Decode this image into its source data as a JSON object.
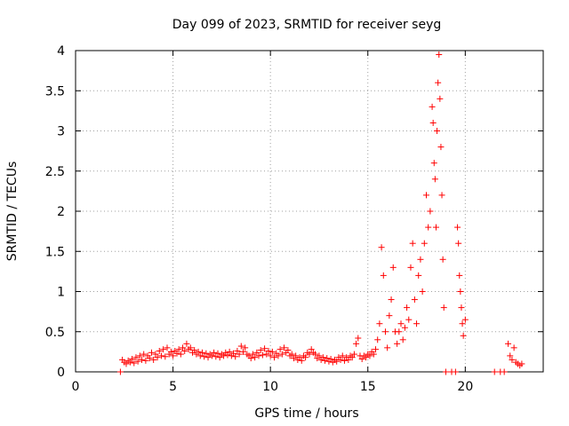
{
  "chart_data": {
    "type": "scatter",
    "title": "Day 099 of 2023, SRMTID for receiver seyg",
    "xlabel": "GPS time / hours",
    "ylabel": "SRMTID / TECUs",
    "xlim": [
      0,
      24
    ],
    "ylim": [
      0,
      4
    ],
    "xticks": [
      0,
      5,
      10,
      15,
      20
    ],
    "yticks": [
      0,
      0.5,
      1,
      1.5,
      2,
      2.5,
      3,
      3.5,
      4
    ],
    "grid": true,
    "marker": "+",
    "color": "#ff0000",
    "series": [
      {
        "name": "SRMTID",
        "points": [
          [
            2.3,
            0.0
          ],
          [
            2.4,
            0.15
          ],
          [
            2.5,
            0.12
          ],
          [
            2.6,
            0.1
          ],
          [
            2.7,
            0.14
          ],
          [
            2.8,
            0.12
          ],
          [
            2.9,
            0.16
          ],
          [
            3.0,
            0.11
          ],
          [
            3.1,
            0.18
          ],
          [
            3.2,
            0.13
          ],
          [
            3.3,
            0.2
          ],
          [
            3.4,
            0.15
          ],
          [
            3.5,
            0.22
          ],
          [
            3.6,
            0.14
          ],
          [
            3.7,
            0.2
          ],
          [
            3.8,
            0.17
          ],
          [
            3.9,
            0.24
          ],
          [
            4.0,
            0.15
          ],
          [
            4.1,
            0.22
          ],
          [
            4.2,
            0.18
          ],
          [
            4.3,
            0.26
          ],
          [
            4.4,
            0.2
          ],
          [
            4.5,
            0.28
          ],
          [
            4.6,
            0.19
          ],
          [
            4.7,
            0.3
          ],
          [
            4.8,
            0.22
          ],
          [
            4.9,
            0.25
          ],
          [
            5.0,
            0.2
          ],
          [
            5.1,
            0.26
          ],
          [
            5.2,
            0.23
          ],
          [
            5.3,
            0.28
          ],
          [
            5.4,
            0.22
          ],
          [
            5.5,
            0.3
          ],
          [
            5.6,
            0.26
          ],
          [
            5.7,
            0.35
          ],
          [
            5.8,
            0.28
          ],
          [
            5.9,
            0.3
          ],
          [
            6.0,
            0.24
          ],
          [
            6.1,
            0.27
          ],
          [
            6.2,
            0.22
          ],
          [
            6.3,
            0.25
          ],
          [
            6.4,
            0.2
          ],
          [
            6.5,
            0.24
          ],
          [
            6.6,
            0.19
          ],
          [
            6.7,
            0.23
          ],
          [
            6.8,
            0.18
          ],
          [
            6.9,
            0.22
          ],
          [
            7.0,
            0.2
          ],
          [
            7.1,
            0.24
          ],
          [
            7.2,
            0.19
          ],
          [
            7.3,
            0.23
          ],
          [
            7.4,
            0.18
          ],
          [
            7.5,
            0.22
          ],
          [
            7.6,
            0.2
          ],
          [
            7.7,
            0.24
          ],
          [
            7.8,
            0.21
          ],
          [
            7.9,
            0.25
          ],
          [
            8.0,
            0.2
          ],
          [
            8.1,
            0.23
          ],
          [
            8.2,
            0.19
          ],
          [
            8.3,
            0.26
          ],
          [
            8.4,
            0.22
          ],
          [
            8.5,
            0.32
          ],
          [
            8.6,
            0.25
          ],
          [
            8.7,
            0.3
          ],
          [
            8.8,
            0.22
          ],
          [
            8.9,
            0.2
          ],
          [
            9.0,
            0.17
          ],
          [
            9.1,
            0.22
          ],
          [
            9.2,
            0.18
          ],
          [
            9.3,
            0.24
          ],
          [
            9.4,
            0.2
          ],
          [
            9.5,
            0.27
          ],
          [
            9.6,
            0.21
          ],
          [
            9.7,
            0.29
          ],
          [
            9.8,
            0.22
          ],
          [
            9.9,
            0.26
          ],
          [
            10.0,
            0.2
          ],
          [
            10.1,
            0.25
          ],
          [
            10.2,
            0.18
          ],
          [
            10.3,
            0.23
          ],
          [
            10.4,
            0.2
          ],
          [
            10.5,
            0.28
          ],
          [
            10.6,
            0.22
          ],
          [
            10.7,
            0.3
          ],
          [
            10.8,
            0.24
          ],
          [
            10.9,
            0.27
          ],
          [
            11.0,
            0.2
          ],
          [
            11.1,
            0.22
          ],
          [
            11.2,
            0.17
          ],
          [
            11.3,
            0.2
          ],
          [
            11.4,
            0.15
          ],
          [
            11.5,
            0.18
          ],
          [
            11.6,
            0.14
          ],
          [
            11.7,
            0.2
          ],
          [
            11.8,
            0.18
          ],
          [
            11.9,
            0.24
          ],
          [
            12.0,
            0.22
          ],
          [
            12.1,
            0.28
          ],
          [
            12.2,
            0.24
          ],
          [
            12.3,
            0.22
          ],
          [
            12.4,
            0.17
          ],
          [
            12.5,
            0.2
          ],
          [
            12.6,
            0.15
          ],
          [
            12.7,
            0.18
          ],
          [
            12.8,
            0.14
          ],
          [
            12.9,
            0.17
          ],
          [
            13.0,
            0.13
          ],
          [
            13.1,
            0.16
          ],
          [
            13.2,
            0.12
          ],
          [
            13.3,
            0.15
          ],
          [
            13.4,
            0.13
          ],
          [
            13.5,
            0.18
          ],
          [
            13.6,
            0.15
          ],
          [
            13.7,
            0.2
          ],
          [
            13.8,
            0.14
          ],
          [
            13.9,
            0.18
          ],
          [
            14.0,
            0.15
          ],
          [
            14.1,
            0.2
          ],
          [
            14.2,
            0.18
          ],
          [
            14.3,
            0.22
          ],
          [
            14.4,
            0.35
          ],
          [
            14.5,
            0.42
          ],
          [
            14.6,
            0.2
          ],
          [
            14.7,
            0.16
          ],
          [
            14.8,
            0.2
          ],
          [
            14.9,
            0.18
          ],
          [
            15.0,
            0.22
          ],
          [
            15.1,
            0.2
          ],
          [
            15.2,
            0.25
          ],
          [
            15.3,
            0.22
          ],
          [
            15.4,
            0.28
          ],
          [
            15.5,
            0.4
          ],
          [
            15.6,
            0.6
          ],
          [
            15.7,
            1.55
          ],
          [
            15.8,
            1.2
          ],
          [
            15.9,
            0.5
          ],
          [
            16.0,
            0.3
          ],
          [
            16.1,
            0.7
          ],
          [
            16.2,
            0.9
          ],
          [
            16.3,
            1.3
          ],
          [
            16.4,
            0.5
          ],
          [
            16.5,
            0.35
          ],
          [
            16.6,
            0.5
          ],
          [
            16.7,
            0.6
          ],
          [
            16.8,
            0.4
          ],
          [
            16.9,
            0.55
          ],
          [
            17.0,
            0.8
          ],
          [
            17.1,
            0.65
          ],
          [
            17.2,
            1.3
          ],
          [
            17.3,
            1.6
          ],
          [
            17.4,
            0.9
          ],
          [
            17.5,
            0.6
          ],
          [
            17.6,
            1.2
          ],
          [
            17.7,
            1.4
          ],
          [
            17.8,
            1.0
          ],
          [
            17.9,
            1.6
          ],
          [
            18.0,
            2.2
          ],
          [
            18.1,
            1.8
          ],
          [
            18.2,
            2.0
          ],
          [
            18.3,
            3.3
          ],
          [
            18.35,
            3.1
          ],
          [
            18.4,
            2.6
          ],
          [
            18.45,
            2.4
          ],
          [
            18.5,
            1.8
          ],
          [
            18.55,
            3.0
          ],
          [
            18.6,
            3.6
          ],
          [
            18.65,
            3.95
          ],
          [
            18.7,
            3.4
          ],
          [
            18.75,
            2.8
          ],
          [
            18.8,
            2.2
          ],
          [
            18.85,
            1.4
          ],
          [
            18.9,
            0.8
          ],
          [
            19.0,
            0.0
          ],
          [
            19.3,
            0.0
          ],
          [
            19.5,
            0.0
          ],
          [
            19.6,
            1.8
          ],
          [
            19.65,
            1.6
          ],
          [
            19.7,
            1.2
          ],
          [
            19.75,
            1.0
          ],
          [
            19.8,
            0.8
          ],
          [
            19.85,
            0.6
          ],
          [
            19.9,
            0.45
          ],
          [
            20.0,
            0.65
          ],
          [
            21.5,
            0.0
          ],
          [
            21.8,
            0.0
          ],
          [
            22.0,
            0.0
          ],
          [
            22.2,
            0.35
          ],
          [
            22.3,
            0.2
          ],
          [
            22.4,
            0.15
          ],
          [
            22.5,
            0.3
          ],
          [
            22.6,
            0.12
          ],
          [
            22.7,
            0.1
          ],
          [
            22.8,
            0.08
          ],
          [
            22.9,
            0.1
          ]
        ]
      }
    ]
  }
}
